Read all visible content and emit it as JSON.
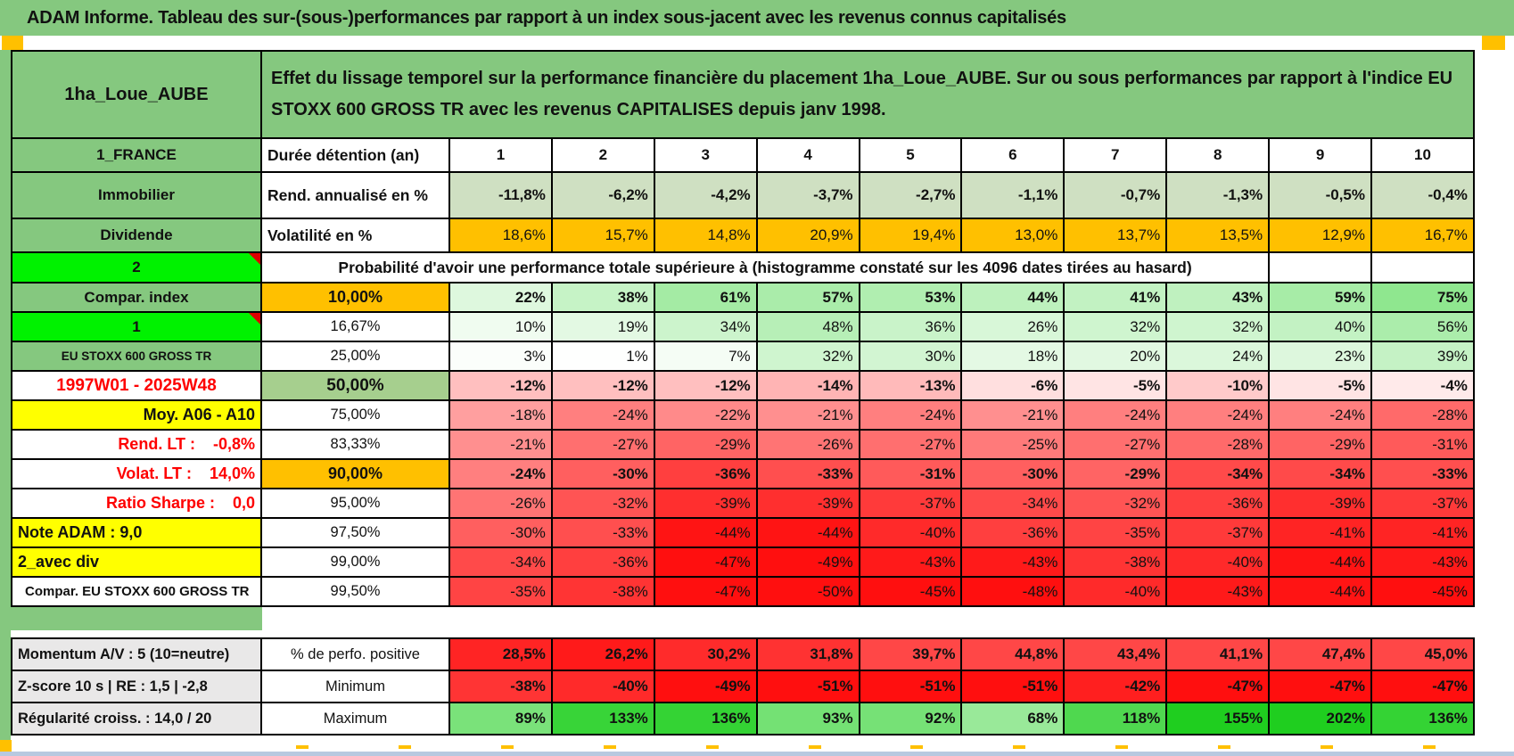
{
  "window": {
    "title": "ADAM Informe. Tableau des sur-(sous-)performances par rapport à un index sous-jacent avec les revenus connus capitalisés"
  },
  "header": {
    "product": "1ha_Loue_AUBE",
    "description": "Effet du lissage temporel sur la performance financière du placement 1ha_Loue_AUBE. Sur ou sous performances par rapport à l'indice EU STOXX 600 GROSS TR avec les revenus CAPITALISES depuis janv 1998."
  },
  "colors": {
    "frame_green": "#85c87f",
    "light_green": "#cfe0c2",
    "orange": "#ffc000",
    "yellow": "#ffff00",
    "lime": "#00f200",
    "green_50pct": "#a6cf8e",
    "gray_label": "#e9e8e8",
    "red_text": "#fe0000",
    "neg_scale_end": "#ff0f0f",
    "pos_scale_end": "#1fce1f",
    "bottom_edge_blue": "#b7c9e0"
  },
  "grid": {
    "rows": [
      {
        "cls": "r-duree",
        "a": "1_FRANCE",
        "a_fmt": "green",
        "b": "Durée détention (an)",
        "b_fmt": "label",
        "cells": [
          "1",
          "2",
          "3",
          "4",
          "5",
          "6",
          "7",
          "8",
          "9",
          "10"
        ],
        "c_fmt": "header"
      },
      {
        "cls": "r-rend",
        "a": "Immobilier",
        "a_fmt": "green",
        "b": "Rend. annualisé en %",
        "b_fmt": "label",
        "cells": [
          "-11,8%",
          "-6,2%",
          "-4,2%",
          "-3,7%",
          "-2,7%",
          "-1,1%",
          "-0,7%",
          "-1,3%",
          "-0,5%",
          "-0,4%"
        ],
        "c_fmt": "lightgreen"
      },
      {
        "cls": "r-volat",
        "a": "Dividende",
        "a_fmt": "green",
        "b": "Volatilité en %",
        "b_fmt": "label",
        "cells": [
          "18,6%",
          "15,7%",
          "14,8%",
          "20,9%",
          "19,4%",
          "13,0%",
          "13,7%",
          "13,5%",
          "12,9%",
          "16,7%"
        ],
        "c_fmt": "orange"
      },
      {
        "cls": "r-span",
        "type": "span",
        "a": "2",
        "a_fmt": "lime",
        "note": true,
        "span_text": "Probabilité d'avoir une performance totale supérieure à (histogramme constaté sur les 4096 dates tirées au hasard)",
        "empty_cells": 2
      },
      {
        "cls": "r-prob",
        "a": "Compar. index",
        "a_fmt": "green",
        "b": "10,00%",
        "b_fmt": "orange",
        "bold": true,
        "cells": [
          "22%",
          "38%",
          "61%",
          "57%",
          "53%",
          "44%",
          "41%",
          "43%",
          "59%",
          "75%"
        ],
        "c_fmt": "scale"
      },
      {
        "cls": "r-prob",
        "a": "1",
        "a_fmt": "lime",
        "note": true,
        "b": "16,67%",
        "b_fmt": "pct",
        "cells": [
          "10%",
          "19%",
          "34%",
          "48%",
          "36%",
          "26%",
          "32%",
          "32%",
          "40%",
          "56%"
        ],
        "c_fmt": "scale"
      },
      {
        "cls": "r-prob",
        "a": "EU STOXX 600 GROSS TR",
        "a_fmt": "green-small",
        "b": "25,00%",
        "b_fmt": "pct",
        "cells": [
          "3%",
          "1%",
          "7%",
          "32%",
          "30%",
          "18%",
          "20%",
          "24%",
          "23%",
          "39%"
        ],
        "c_fmt": "scale"
      },
      {
        "cls": "r-prob",
        "a": "1997W01 - 2025W48",
        "a_fmt": "red-center",
        "b": "50,00%",
        "b_fmt": "green",
        "bold": true,
        "cells": [
          "-12%",
          "-12%",
          "-12%",
          "-14%",
          "-13%",
          "-6%",
          "-5%",
          "-10%",
          "-5%",
          "-4%"
        ],
        "c_fmt": "scale"
      },
      {
        "cls": "r-prob",
        "a": "Moy. A06 - A10",
        "a_fmt": "yellow-right",
        "b": "75,00%",
        "b_fmt": "pct",
        "cells": [
          "-18%",
          "-24%",
          "-22%",
          "-21%",
          "-24%",
          "-21%",
          "-24%",
          "-24%",
          "-24%",
          "-28%"
        ],
        "c_fmt": "scale"
      },
      {
        "cls": "r-prob",
        "a": "Rend. LT :    -0,8%",
        "a_fmt": "red-right",
        "b": "83,33%",
        "b_fmt": "pct",
        "cells": [
          "-21%",
          "-27%",
          "-29%",
          "-26%",
          "-27%",
          "-25%",
          "-27%",
          "-28%",
          "-29%",
          "-31%"
        ],
        "c_fmt": "scale"
      },
      {
        "cls": "r-prob",
        "a": "Volat. LT :    14,0%",
        "a_fmt": "red-right",
        "b": "90,00%",
        "b_fmt": "orange",
        "bold": true,
        "cells": [
          "-24%",
          "-30%",
          "-36%",
          "-33%",
          "-31%",
          "-30%",
          "-29%",
          "-34%",
          "-34%",
          "-33%"
        ],
        "c_fmt": "scale"
      },
      {
        "cls": "r-prob",
        "a": "Ratio Sharpe :    0,0",
        "a_fmt": "red-right",
        "b": "95,00%",
        "b_fmt": "pct",
        "cells": [
          "-26%",
          "-32%",
          "-39%",
          "-39%",
          "-37%",
          "-34%",
          "-32%",
          "-36%",
          "-39%",
          "-37%"
        ],
        "c_fmt": "scale"
      },
      {
        "cls": "r-prob",
        "a": "Note ADAM : 9,0",
        "a_fmt": "yellow-left",
        "b": "97,50%",
        "b_fmt": "pct",
        "cells": [
          "-30%",
          "-33%",
          "-44%",
          "-44%",
          "-40%",
          "-36%",
          "-35%",
          "-37%",
          "-41%",
          "-41%"
        ],
        "c_fmt": "scale"
      },
      {
        "cls": "r-prob",
        "a": "2_avec div",
        "a_fmt": "yellow-left",
        "b": "99,00%",
        "b_fmt": "pct",
        "cells": [
          "-34%",
          "-36%",
          "-47%",
          "-49%",
          "-43%",
          "-43%",
          "-38%",
          "-40%",
          "-44%",
          "-43%"
        ],
        "c_fmt": "scale"
      },
      {
        "cls": "r-prob",
        "a": "Compar. EU STOXX 600 GROSS TR",
        "a_fmt": "white-left",
        "b": "99,50%",
        "b_fmt": "pct",
        "cells": [
          "-35%",
          "-38%",
          "-47%",
          "-50%",
          "-45%",
          "-48%",
          "-40%",
          "-43%",
          "-44%",
          "-45%"
        ],
        "c_fmt": "scale"
      }
    ]
  },
  "bottom": {
    "rows": [
      {
        "a": "Momentum A/V : 5 (10=neutre)",
        "b": "% de perfo. positive",
        "bold": true,
        "cells": [
          "28,5%",
          "26,2%",
          "30,2%",
          "31,8%",
          "39,7%",
          "44,8%",
          "43,4%",
          "41,1%",
          "47,4%",
          "45,0%"
        ],
        "c_fmt": "redrow"
      },
      {
        "a": "Z-score 10 s | RE : 1,5 | -2,8",
        "b": "Minimum",
        "bold": true,
        "cells": [
          "-38%",
          "-40%",
          "-49%",
          "-51%",
          "-51%",
          "-51%",
          "-42%",
          "-47%",
          "-47%",
          "-47%"
        ],
        "c_fmt": "scale"
      },
      {
        "a": "Régularité croiss. : 14,0 / 20",
        "b": "Maximum",
        "bold": true,
        "cells": [
          "89%",
          "133%",
          "136%",
          "93%",
          "92%",
          "68%",
          "118%",
          "155%",
          "202%",
          "136%"
        ],
        "c_fmt": "scale"
      }
    ]
  }
}
